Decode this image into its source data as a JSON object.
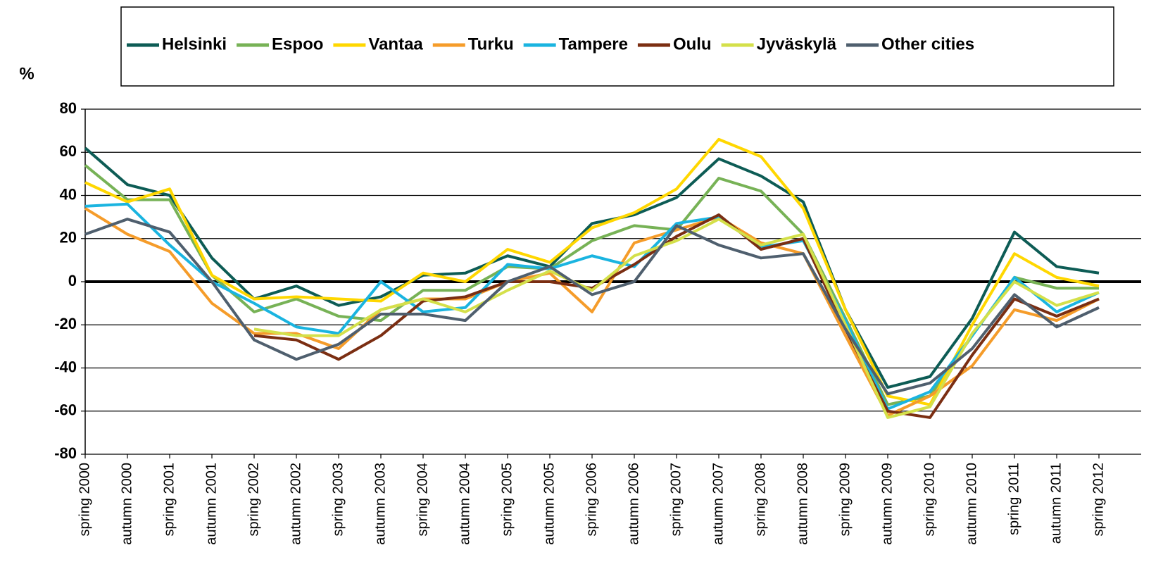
{
  "chart_data": {
    "type": "line",
    "y_label": "%",
    "categories": [
      "spring 2000",
      "autumn 2000",
      "spring 2001",
      "autumn 2001",
      "spring 2002",
      "autumn 2002",
      "spring 2003",
      "autumn 2003",
      "spring 2004",
      "autumn 2004",
      "spring 2005",
      "autumn 2005",
      "spring 2006",
      "autumn 2006",
      "spring 2007",
      "autumn 2007",
      "spring 2008",
      "autumn 2008",
      "spring 2009",
      "autumn 2009",
      "spring 2010",
      "autumn 2010",
      "spring 2011",
      "autumn 2011",
      "spring 2012"
    ],
    "ylim": [
      -80,
      80
    ],
    "yticks": [
      -80,
      -60,
      -40,
      -20,
      0,
      20,
      40,
      60,
      80
    ],
    "grid": true,
    "legend": "top",
    "series": [
      {
        "name": "Helsinki",
        "color": "#0d5c55",
        "values": [
          62,
          45,
          40,
          11,
          -8,
          -2,
          -11,
          -7,
          3,
          4,
          12,
          7,
          27,
          31,
          39,
          57,
          49,
          37,
          -13,
          -49,
          -44,
          -17,
          23,
          7,
          4
        ]
      },
      {
        "name": "Espoo",
        "color": "#77b256",
        "values": [
          54,
          38,
          38,
          3,
          -14,
          -8,
          -16,
          -18,
          -4,
          -4,
          7,
          6,
          19,
          26,
          24,
          48,
          42,
          22,
          -17,
          -57,
          -53,
          -25,
          2,
          -3,
          -3
        ]
      },
      {
        "name": "Vantaa",
        "color": "#ffd700",
        "values": [
          46,
          37,
          43,
          3,
          -8,
          -7,
          -8,
          -9,
          4,
          0,
          15,
          9,
          25,
          32,
          43,
          66,
          58,
          34,
          -13,
          -53,
          -57,
          -20,
          13,
          2,
          -2
        ]
      },
      {
        "name": "Turku",
        "color": "#f59c2a",
        "values": [
          34,
          22,
          14,
          -10,
          -24,
          -24,
          -31,
          -13,
          -8,
          -8,
          0,
          4,
          -14,
          18,
          24,
          30,
          18,
          13,
          -25,
          -62,
          -53,
          -39,
          -13,
          -18,
          -8
        ]
      },
      {
        "name": "Tampere",
        "color": "#1ab4e0",
        "values": [
          35,
          36,
          17,
          0,
          -10,
          -21,
          -24,
          0,
          -14,
          -12,
          8,
          6,
          12,
          7,
          27,
          30,
          16,
          19,
          -18,
          -59,
          -51,
          -25,
          2,
          -14,
          -5
        ]
      },
      {
        "name": "Oulu",
        "color": "#7b2e12",
        "values": [
          null,
          null,
          null,
          null,
          -25,
          -27,
          -36,
          -25,
          -9,
          -7,
          0,
          0,
          -3,
          8,
          21,
          31,
          15,
          20,
          -22,
          -60,
          -63,
          -34,
          -8,
          -16,
          -8
        ]
      },
      {
        "name": "Jyväskylä",
        "color": "#d4e04a",
        "values": [
          null,
          null,
          null,
          null,
          -22,
          -25,
          -25,
          -13,
          -8,
          -14,
          -4,
          5,
          -4,
          12,
          19,
          29,
          17,
          22,
          -20,
          -63,
          -58,
          -24,
          0,
          -11,
          -5
        ]
      },
      {
        "name": "Other cities",
        "color": "#4f5f6e",
        "values": [
          22,
          29,
          23,
          0,
          -27,
          -36,
          -29,
          -15,
          -15,
          -18,
          0,
          7,
          -6,
          0,
          26,
          17,
          11,
          13,
          -22,
          -52,
          -47,
          -31,
          -6,
          -21,
          -12
        ]
      }
    ]
  }
}
